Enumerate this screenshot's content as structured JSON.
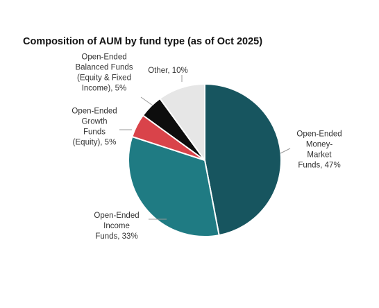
{
  "chart_data": {
    "type": "pie",
    "title": "Composition of AUM by fund type (as of Oct 2025)",
    "start_angle_deg": 0,
    "direction": "clockwise",
    "slices": [
      {
        "label": "Open-Ended Money-Market Funds",
        "value": 47,
        "display": "Open-Ended Money-Market Funds, 47%",
        "color": "#17555f",
        "label_lines": [
          "Open-Ended",
          "Money-",
          "Market",
          "Funds, 47%"
        ]
      },
      {
        "label": "Open-Ended Income Funds",
        "value": 33,
        "display": "Open-Ended Income Funds, 33%",
        "color": "#1f7b83",
        "label_lines": [
          "Open-Ended",
          "Income",
          "Funds, 33%"
        ]
      },
      {
        "label": "Open-Ended Growth Funds (Equity)",
        "value": 5,
        "display": "Open-Ended Growth Funds (Equity), 5%",
        "color": "#d9434a",
        "label_lines": [
          "Open-Ended",
          "Growth",
          "Funds",
          "(Equity), 5%"
        ]
      },
      {
        "label": "Open-Ended Balanced Funds (Equity & Fixed Income)",
        "value": 5,
        "display": "Open-Ended Balanced Funds (Equity & Fixed Income), 5%",
        "color": "#0d0d0d",
        "label_lines": [
          "Open-Ended",
          "Balanced Funds",
          "(Equity & Fixed",
          "Income), 5%"
        ]
      },
      {
        "label": "Other",
        "value": 10,
        "display": "Other, 10%",
        "color": "#e6e6e6",
        "label_lines": [
          "Other, 10%"
        ]
      }
    ]
  }
}
